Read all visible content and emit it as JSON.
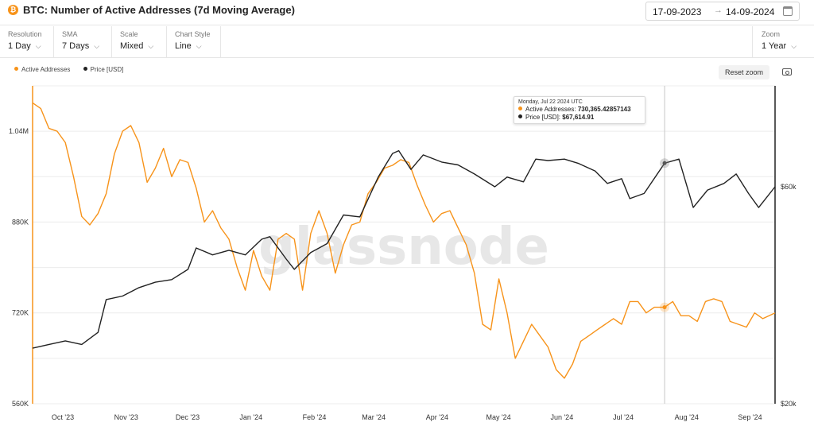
{
  "header": {
    "icon_letter": "₿",
    "title": "BTC: Number of Active Addresses (7d Moving Average)",
    "date_start": "17-09-2023",
    "date_arrow": "→",
    "date_end": "14-09-2024",
    "calendar_icon": "calendar-icon"
  },
  "toolbar": {
    "resolution": {
      "label": "Resolution",
      "value": "1 Day"
    },
    "sma": {
      "label": "SMA",
      "value": "7 Days"
    },
    "scale": {
      "label": "Scale",
      "value": "Mixed"
    },
    "chart_style": {
      "label": "Chart Style",
      "value": "Line"
    },
    "zoom": {
      "label": "Zoom",
      "value": "1 Year"
    },
    "chevron": "⌵"
  },
  "legend": {
    "active_label": "Active Addresses",
    "price_label": "Price [USD]"
  },
  "buttons": {
    "reset_zoom": "Reset zoom",
    "camera_icon": "camera-icon"
  },
  "watermark": "glassnode",
  "tooltip": {
    "date": "Monday, Jul 22 2024 UTC",
    "active_label": "Active Addresses:",
    "active_value": "730,365.42857143",
    "price_label": "Price [USD]:",
    "price_value": "$67,614.91"
  },
  "colors": {
    "active": "#f7931a",
    "price": "#222222",
    "grid": "#ececec"
  },
  "chart_data": {
    "type": "line",
    "title": "BTC: Number of Active Addresses (7d Moving Average)",
    "left_axis": {
      "ticks": [
        "1.04M",
        "880K",
        "720K",
        "560K"
      ],
      "tick_values": [
        1040000,
        880000,
        720000,
        560000
      ],
      "range": [
        560000,
        1120000
      ]
    },
    "right_axis": {
      "scale": "log",
      "ticks": [
        "$60k",
        "$20k"
      ],
      "tick_values": [
        60000,
        20000
      ],
      "range": [
        20000,
        100000
      ]
    },
    "x_ticks": [
      "Oct '23",
      "Nov '23",
      "Dec '23",
      "Jan '24",
      "Feb '24",
      "Mar '24",
      "Apr '24",
      "May '24",
      "Jun '24",
      "Jul '24",
      "Aug '24",
      "Sep '24"
    ],
    "x_tick_dates": [
      "2023-10-01",
      "2023-11-01",
      "2023-12-01",
      "2024-01-01",
      "2024-02-01",
      "2024-03-01",
      "2024-04-01",
      "2024-05-01",
      "2024-06-01",
      "2024-07-01",
      "2024-08-01",
      "2024-09-01"
    ],
    "x_range": [
      "2023-09-17",
      "2024-09-14"
    ],
    "grid": true,
    "legend_position": "top-left",
    "series": [
      {
        "name": "Active Addresses",
        "axis": "left",
        "dates": [
          "2023-09-17",
          "2023-09-21",
          "2023-09-25",
          "2023-09-29",
          "2023-10-03",
          "2023-10-07",
          "2023-10-11",
          "2023-10-15",
          "2023-10-19",
          "2023-10-23",
          "2023-10-27",
          "2023-10-31",
          "2023-11-04",
          "2023-11-08",
          "2023-11-12",
          "2023-11-16",
          "2023-11-20",
          "2023-11-24",
          "2023-11-28",
          "2023-12-02",
          "2023-12-06",
          "2023-12-10",
          "2023-12-14",
          "2023-12-18",
          "2023-12-22",
          "2023-12-26",
          "2023-12-30",
          "2024-01-03",
          "2024-01-07",
          "2024-01-11",
          "2024-01-15",
          "2024-01-19",
          "2024-01-23",
          "2024-01-27",
          "2024-01-31",
          "2024-02-04",
          "2024-02-08",
          "2024-02-12",
          "2024-02-16",
          "2024-02-20",
          "2024-02-24",
          "2024-02-28",
          "2024-03-03",
          "2024-03-07",
          "2024-03-11",
          "2024-03-15",
          "2024-03-19",
          "2024-03-23",
          "2024-03-27",
          "2024-03-31",
          "2024-04-04",
          "2024-04-08",
          "2024-04-12",
          "2024-04-16",
          "2024-04-20",
          "2024-04-24",
          "2024-04-28",
          "2024-05-02",
          "2024-05-06",
          "2024-05-10",
          "2024-05-14",
          "2024-05-18",
          "2024-05-22",
          "2024-05-26",
          "2024-05-30",
          "2024-06-03",
          "2024-06-07",
          "2024-06-11",
          "2024-06-15",
          "2024-06-19",
          "2024-06-23",
          "2024-06-27",
          "2024-07-01",
          "2024-07-05",
          "2024-07-09",
          "2024-07-13",
          "2024-07-17",
          "2024-07-22",
          "2024-07-26",
          "2024-07-30",
          "2024-08-03",
          "2024-08-07",
          "2024-08-11",
          "2024-08-15",
          "2024-08-19",
          "2024-08-23",
          "2024-08-27",
          "2024-08-31",
          "2024-09-04",
          "2024-09-08",
          "2024-09-14"
        ],
        "values": [
          1090000,
          1080000,
          1045000,
          1040000,
          1020000,
          960000,
          890000,
          875000,
          895000,
          930000,
          1000000,
          1040000,
          1050000,
          1020000,
          950000,
          975000,
          1010000,
          960000,
          990000,
          985000,
          940000,
          880000,
          900000,
          870000,
          850000,
          800000,
          760000,
          830000,
          785000,
          760000,
          850000,
          860000,
          850000,
          760000,
          860000,
          900000,
          860000,
          790000,
          840000,
          875000,
          880000,
          930000,
          950000,
          975000,
          980000,
          990000,
          985000,
          945000,
          910000,
          880000,
          895000,
          900000,
          870000,
          840000,
          790000,
          700000,
          690000,
          780000,
          720000,
          640000,
          670000,
          700000,
          680000,
          660000,
          620000,
          605000,
          630000,
          670000,
          680000,
          690000,
          700000,
          710000,
          700000,
          740000,
          740000,
          720000,
          730000,
          730000,
          740000,
          715000,
          715000,
          705000,
          740000,
          745000,
          740000,
          705000,
          700000,
          695000,
          720000,
          710000,
          720000
        ]
      },
      {
        "name": "Price [USD]",
        "axis": "right",
        "dates": [
          "2023-09-17",
          "2023-09-25",
          "2023-10-03",
          "2023-10-11",
          "2023-10-19",
          "2023-10-23",
          "2023-10-31",
          "2023-11-08",
          "2023-11-16",
          "2023-11-24",
          "2023-12-02",
          "2023-12-06",
          "2023-12-14",
          "2023-12-22",
          "2023-12-30",
          "2024-01-07",
          "2024-01-11",
          "2024-01-19",
          "2024-01-23",
          "2024-01-31",
          "2024-02-08",
          "2024-02-16",
          "2024-02-24",
          "2024-03-04",
          "2024-03-11",
          "2024-03-14",
          "2024-03-20",
          "2024-03-26",
          "2024-04-04",
          "2024-04-12",
          "2024-04-20",
          "2024-04-30",
          "2024-05-06",
          "2024-05-14",
          "2024-05-20",
          "2024-05-26",
          "2024-06-03",
          "2024-06-10",
          "2024-06-18",
          "2024-06-24",
          "2024-07-01",
          "2024-07-05",
          "2024-07-12",
          "2024-07-22",
          "2024-07-29",
          "2024-08-05",
          "2024-08-12",
          "2024-08-20",
          "2024-08-26",
          "2024-09-01",
          "2024-09-06",
          "2024-09-14"
        ],
        "values": [
          26500,
          27000,
          27500,
          27000,
          28700,
          33900,
          34500,
          36000,
          37000,
          37500,
          39500,
          44000,
          42500,
          43500,
          42500,
          46000,
          46600,
          41600,
          39500,
          43000,
          45000,
          52000,
          51500,
          63000,
          71000,
          72000,
          65500,
          70500,
          68000,
          67000,
          64000,
          60000,
          63000,
          61500,
          69000,
          68500,
          69000,
          67500,
          65000,
          61000,
          62500,
          56500,
          58000,
          67614.91,
          69000,
          54000,
          59000,
          61000,
          64000,
          58000,
          54000,
          60000
        ]
      }
    ]
  }
}
